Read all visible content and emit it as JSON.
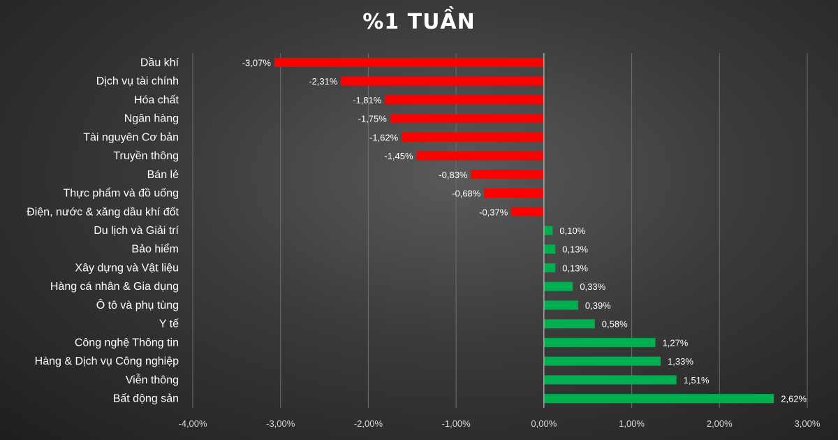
{
  "chart_data": {
    "type": "bar",
    "orientation": "horizontal",
    "title": "%1 TUẦN",
    "xlabel": "",
    "ylabel": "",
    "xlim": [
      -4,
      3
    ],
    "x_ticks": [
      "-4,00%",
      "-3,00%",
      "-2,00%",
      "-1,00%",
      "0,00%",
      "1,00%",
      "2,00%",
      "3,00%"
    ],
    "grid": true,
    "legend": "none",
    "categories": [
      "Dầu khí",
      "Dịch vụ tài chính",
      "Hóa chất",
      "Ngân hàng",
      "Tài nguyên Cơ bản",
      "Truyền thông",
      "Bán lẻ",
      "Thực phẩm và đồ uống",
      "Điện, nước & xăng dầu khí đốt",
      "Du lịch và Giải trí",
      "Bảo hiểm",
      "Xây dựng và Vật liệu",
      "Hàng cá nhân & Gia dụng",
      "Ô tô và phụ tùng",
      "Y tế",
      "Công nghệ Thông tin",
      "Hàng & Dịch vụ Công nghiệp",
      "Viễn thông",
      "Bất động sản"
    ],
    "values": [
      -3.07,
      -2.31,
      -1.81,
      -1.75,
      -1.62,
      -1.45,
      -0.83,
      -0.68,
      -0.37,
      0.1,
      0.13,
      0.13,
      0.33,
      0.39,
      0.58,
      1.27,
      1.33,
      1.51,
      2.62
    ],
    "value_labels": [
      "-3,07%",
      "-2,31%",
      "-1,81%",
      "-1,75%",
      "-1,62%",
      "-1,45%",
      "-0,83%",
      "-0,68%",
      "-0,37%",
      "0,10%",
      "0,13%",
      "0,13%",
      "0,33%",
      "0,39%",
      "0,58%",
      "1,27%",
      "1,33%",
      "1,51%",
      "2,62%"
    ],
    "colors": {
      "negative": "#ff0000",
      "positive": "#00b050"
    }
  }
}
